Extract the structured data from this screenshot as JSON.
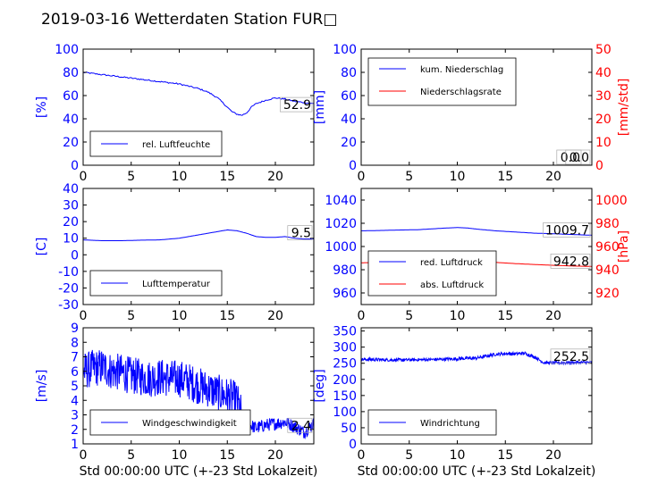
{
  "title": "2019-03-16 Wetterdaten Station FUR□",
  "colors": {
    "primary": "#0000ff",
    "secondary": "#ff0000",
    "frame": "#000000"
  },
  "chart_data": [
    {
      "id": "humidity",
      "type": "line",
      "xlim": [
        0,
        24
      ],
      "ylim": [
        0,
        100
      ],
      "xticks": [
        0,
        5,
        10,
        15,
        20
      ],
      "yticks": [
        0,
        20,
        40,
        60,
        80,
        100
      ],
      "ylabel": "[%]",
      "xlabel": "",
      "legend": {
        "placement": "lower-left",
        "entries": [
          "rel. Luftfeuchte"
        ]
      },
      "annotations": [
        "52.9"
      ],
      "series": [
        {
          "name": "rel. Luftfeuchte",
          "color": "#0000ff",
          "x": [
            0,
            1,
            2,
            3,
            4,
            5,
            6,
            7,
            8,
            9,
            10,
            11,
            12,
            13,
            14,
            15,
            15.5,
            16,
            16.5,
            17,
            17.5,
            18,
            19,
            20,
            21,
            22,
            23,
            24
          ],
          "y": [
            80,
            79,
            78,
            77,
            76,
            75,
            74,
            73,
            72,
            71,
            70,
            68,
            66,
            63,
            58,
            50,
            46,
            44,
            43,
            45,
            50,
            53,
            56,
            58,
            57,
            55,
            54,
            53
          ]
        }
      ]
    },
    {
      "id": "precipitation",
      "type": "line",
      "xlim": [
        0,
        24
      ],
      "ylim": [
        0,
        100
      ],
      "y2lim": [
        0,
        50
      ],
      "xticks": [
        0,
        5,
        10,
        15,
        20
      ],
      "yticks": [
        0,
        20,
        40,
        60,
        80,
        100
      ],
      "y2ticks": [
        0,
        10,
        20,
        30,
        40,
        50
      ],
      "ylabel": "[mm]",
      "y2label": "[mm/std]",
      "legend": {
        "placement": "top-left",
        "entries": [
          "kum. Niederschlag",
          "Niederschlagsrate"
        ]
      },
      "annotations": [
        "0.0",
        "0.0"
      ],
      "series": [
        {
          "name": "kum. Niederschlag",
          "color": "#0000ff",
          "axis": "left",
          "x": [
            0,
            24
          ],
          "y": [
            0,
            0
          ]
        },
        {
          "name": "Niederschlagsrate",
          "color": "#ff0000",
          "axis": "right",
          "x": [
            0,
            24
          ],
          "y": [
            0,
            0
          ]
        }
      ]
    },
    {
      "id": "temperature",
      "type": "line",
      "xlim": [
        0,
        24
      ],
      "ylim": [
        -30,
        40
      ],
      "xticks": [
        0,
        5,
        10,
        15,
        20
      ],
      "yticks": [
        -30,
        -20,
        -10,
        0,
        10,
        20,
        30,
        40
      ],
      "ylabel": "[C]",
      "legend": {
        "placement": "lower-left",
        "entries": [
          "Lufttemperatur"
        ]
      },
      "annotations": [
        "9.5"
      ],
      "series": [
        {
          "name": "Lufttemperatur",
          "color": "#0000ff",
          "x": [
            0,
            2,
            4,
            6,
            8,
            10,
            11,
            12,
            13,
            14,
            15,
            16,
            17,
            18,
            19,
            20,
            21,
            22,
            23,
            24
          ],
          "y": [
            9,
            8.5,
            8.5,
            8.8,
            9,
            10,
            11,
            12,
            13,
            14,
            15,
            14.5,
            13,
            11,
            10.5,
            10.5,
            11,
            10,
            9.5,
            9.5
          ]
        }
      ]
    },
    {
      "id": "pressure",
      "type": "line",
      "xlim": [
        0,
        24
      ],
      "ylim": [
        950,
        1050
      ],
      "y2lim": [
        910,
        1010
      ],
      "xticks": [
        0,
        5,
        10,
        15,
        20
      ],
      "yticks": [
        960,
        980,
        1000,
        1020,
        1040
      ],
      "y2ticks": [
        920,
        940,
        960,
        980,
        1000
      ],
      "ylabel": "",
      "y2label": "[hPa]",
      "legend": {
        "placement": "lower-left",
        "entries": [
          "red. Luftdruck",
          "abs. Luftdruck"
        ]
      },
      "annotations": [
        "1009.7",
        "942.8"
      ],
      "series": [
        {
          "name": "red. Luftdruck",
          "color": "#0000ff",
          "axis": "left",
          "x": [
            0,
            2,
            4,
            6,
            8,
            9,
            10,
            11,
            12,
            14,
            16,
            18,
            20,
            22,
            24
          ],
          "y": [
            1013.5,
            1013.8,
            1014.2,
            1014.5,
            1015.5,
            1016,
            1016.3,
            1016,
            1015,
            1013.5,
            1012.5,
            1011.5,
            1011,
            1010.3,
            1009.7
          ]
        },
        {
          "name": "abs. Luftdruck",
          "color": "#ff0000",
          "axis": "right",
          "x": [
            0,
            2,
            4,
            6,
            8,
            9,
            10,
            11,
            12,
            14,
            16,
            18,
            20,
            22,
            24
          ],
          "y": [
            946,
            946.3,
            946.7,
            947.3,
            948,
            948.5,
            948.7,
            948.5,
            947.5,
            946.3,
            945.3,
            944.5,
            943.8,
            943.2,
            942.8
          ]
        }
      ]
    },
    {
      "id": "wind-speed",
      "type": "line",
      "xlim": [
        0,
        24
      ],
      "ylim": [
        1,
        9
      ],
      "xticks": [
        0,
        5,
        10,
        15,
        20
      ],
      "yticks": [
        1,
        2,
        3,
        4,
        5,
        6,
        7,
        8,
        9
      ],
      "ylabel": "[m/s]",
      "xlabel": "Std 00:00:00 UTC (+-23 Std Lokalzeit)",
      "legend": {
        "placement": "lower-left",
        "entries": [
          "Windgeschwindigkeit"
        ]
      },
      "annotations": [
        "2.4"
      ],
      "series": [
        {
          "name": "Windgeschwindigkeit",
          "color": "#0000ff",
          "noisy": true,
          "x": [
            0,
            1,
            2,
            3,
            4,
            5,
            6,
            7,
            8,
            9,
            10,
            11,
            12,
            13,
            14,
            15,
            16,
            16.5,
            17,
            18,
            19,
            20,
            21,
            22,
            23,
            24
          ],
          "y": [
            6,
            6.2,
            6.3,
            6,
            5.9,
            5.7,
            5.6,
            5.5,
            5.6,
            5.5,
            5.5,
            5.3,
            5,
            4.8,
            4.5,
            4.3,
            4,
            3,
            2.4,
            2.1,
            2.3,
            2.4,
            2.5,
            2.2,
            1.8,
            2.4
          ]
        }
      ]
    },
    {
      "id": "wind-direction",
      "type": "line",
      "xlim": [
        0,
        24
      ],
      "ylim": [
        0,
        360
      ],
      "xticks": [
        0,
        5,
        10,
        15,
        20
      ],
      "yticks": [
        0,
        50,
        100,
        150,
        200,
        250,
        300,
        350
      ],
      "ylabel": "[deg]",
      "xlabel": "Std 00:00:00 UTC (+-23 Std Lokalzeit)",
      "legend": {
        "placement": "lower-left",
        "entries": [
          "Windrichtung"
        ]
      },
      "annotations": [
        "252.5"
      ],
      "series": [
        {
          "name": "Windrichtung",
          "color": "#0000ff",
          "noisy": true,
          "x": [
            0,
            2,
            4,
            6,
            8,
            10,
            12,
            13,
            14,
            15,
            16,
            17,
            18,
            19,
            20,
            22,
            24
          ],
          "y": [
            262,
            261,
            260,
            261,
            262,
            264,
            266,
            272,
            278,
            280,
            279,
            281,
            270,
            252,
            251,
            252,
            252.5
          ]
        }
      ]
    }
  ]
}
